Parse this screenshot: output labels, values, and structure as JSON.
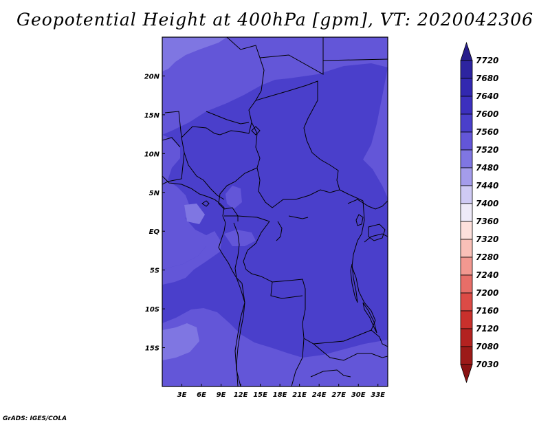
{
  "title": "Geopotential Height at 400hPa [gpm], VT: 2020042306",
  "credit": "GrADS: IGES/COLA",
  "map": {
    "lon_range": [
      0,
      34.5
    ],
    "lat_range": [
      -20,
      25
    ],
    "x_ticks": [
      "3E",
      "6E",
      "9E",
      "12E",
      "15E",
      "18E",
      "21E",
      "24E",
      "27E",
      "30E",
      "33E"
    ],
    "x_tick_values": [
      3,
      6,
      9,
      12,
      15,
      18,
      21,
      24,
      27,
      30,
      33
    ],
    "y_ticks": [
      "20N",
      "15N",
      "10N",
      "5N",
      "EQ",
      "5S",
      "10S",
      "15S"
    ],
    "y_tick_values": [
      20,
      15,
      10,
      5,
      0,
      -5,
      -10,
      -15
    ]
  },
  "colorbar": {
    "levels": [
      "7720",
      "7680",
      "7640",
      "7600",
      "7560",
      "7520",
      "7480",
      "7440",
      "7400",
      "7360",
      "7320",
      "7280",
      "7240",
      "7200",
      "7160",
      "7120",
      "7080",
      "7030"
    ],
    "colors": [
      "#281e8c",
      "#2d24a0",
      "#3228b0",
      "#3c30be",
      "#4a3fcb",
      "#6356d8",
      "#7f76e2",
      "#a49ceb",
      "#cfcaf4",
      "#eeeaf8",
      "#fde0dc",
      "#f9c0b8",
      "#f29890",
      "#e76e68",
      "#dc4b46",
      "#c9302c",
      "#b32220",
      "#9c1a18",
      "#8a1212"
    ]
  }
}
